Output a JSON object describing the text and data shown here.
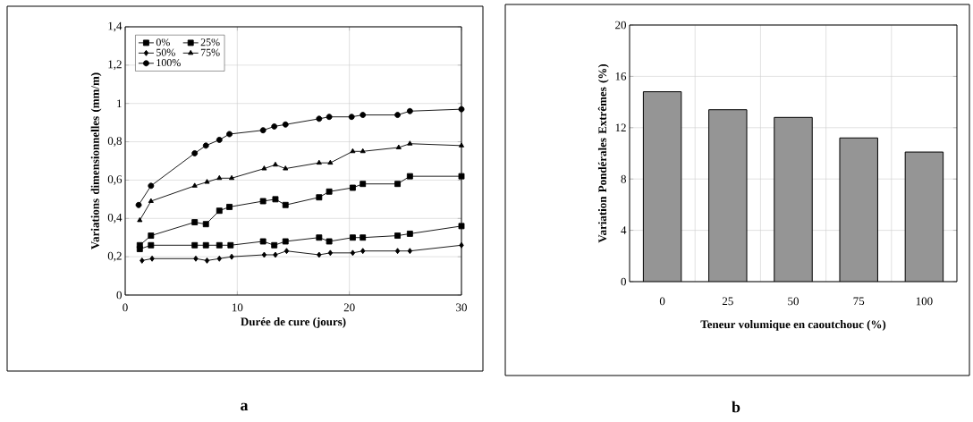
{
  "chart_data": [
    {
      "type": "line",
      "xlabel": "Durée de cure (jours)",
      "ylabel": "Variations dimensionnelles (mm/m)",
      "xlim": [
        0,
        30
      ],
      "ylim": [
        0,
        1.4
      ],
      "xticks": [
        0,
        10,
        20,
        30
      ],
      "yticks": [
        0,
        {
          "value": 0.2,
          "label": "0,2"
        },
        {
          "value": 0.4,
          "label": "0,4"
        },
        {
          "value": 0.6,
          "label": "0,6"
        },
        {
          "value": 0.8,
          "label": "0,8"
        },
        1,
        {
          "value": 1.2,
          "label": "1,2"
        },
        {
          "value": 1.4,
          "label": "1,4"
        }
      ],
      "grid": true,
      "legend": "top left",
      "annotations": [
        "a"
      ],
      "series": [
        {
          "name": "0%",
          "color": "#000000",
          "marker": "square",
          "x": [
            1.3,
            2.3,
            6.2,
            7.2,
            8.4,
            9.3,
            12.3,
            13.4,
            14.3,
            17.3,
            18.2,
            20.3,
            21.2,
            24.3,
            25.4,
            30
          ],
          "values": [
            0.26,
            0.31,
            0.38,
            0.37,
            0.44,
            0.46,
            0.49,
            0.5,
            0.47,
            0.51,
            0.54,
            0.56,
            0.58,
            0.58,
            0.62,
            0.62
          ]
        },
        {
          "name": "25%",
          "color": "#000000",
          "marker": "square",
          "x": [
            1.3,
            2.3,
            6.2,
            7.2,
            8.4,
            9.4,
            12.3,
            13.3,
            14.3,
            17.3,
            18.2,
            20.3,
            21.2,
            24.3,
            25.4,
            30
          ],
          "values": [
            0.24,
            0.26,
            0.26,
            0.26,
            0.26,
            0.26,
            0.28,
            0.26,
            0.28,
            0.3,
            0.28,
            0.3,
            0.3,
            0.31,
            0.32,
            0.36
          ]
        },
        {
          "name": "50%",
          "color": "#000000",
          "marker": "diamond",
          "x": [
            1.5,
            2.4,
            6.3,
            7.3,
            8.4,
            9.5,
            12.4,
            13.4,
            14.4,
            17.3,
            18.3,
            20.3,
            21.2,
            24.3,
            25.4,
            30
          ],
          "values": [
            0.18,
            0.19,
            0.19,
            0.18,
            0.19,
            0.2,
            0.21,
            0.21,
            0.23,
            0.21,
            0.22,
            0.22,
            0.23,
            0.23,
            0.23,
            0.26
          ]
        },
        {
          "name": "75%",
          "color": "#000000",
          "marker": "triangle",
          "x": [
            1.3,
            2.3,
            6.2,
            7.3,
            8.4,
            9.5,
            12.4,
            13.4,
            14.3,
            17.3,
            18.3,
            20.3,
            21.2,
            24.4,
            25.4,
            30
          ],
          "values": [
            0.39,
            0.49,
            0.57,
            0.59,
            0.61,
            0.61,
            0.66,
            0.68,
            0.66,
            0.69,
            0.69,
            0.75,
            0.75,
            0.77,
            0.79,
            0.78
          ]
        },
        {
          "name": "100%",
          "color": "#000000",
          "marker": "circle",
          "x": [
            1.2,
            2.3,
            6.2,
            7.2,
            8.4,
            9.3,
            12.3,
            13.3,
            14.3,
            17.3,
            18.2,
            20.2,
            21.2,
            24.3,
            25.4,
            30
          ],
          "values": [
            0.47,
            0.57,
            0.74,
            0.78,
            0.81,
            0.84,
            0.86,
            0.88,
            0.89,
            0.92,
            0.93,
            0.93,
            0.94,
            0.94,
            0.96,
            0.97
          ]
        }
      ]
    },
    {
      "type": "bar",
      "xlabel": "Teneur volumique en caoutchouc (%)",
      "ylabel": "Variation Pondérales Extrêmes (%)",
      "categories": [
        "0",
        "25",
        "50",
        "75",
        "100"
      ],
      "values": [
        14.8,
        13.4,
        12.8,
        11.2,
        10.1
      ],
      "color": "#959595",
      "ylim": [
        0,
        20
      ],
      "yticks": [
        0,
        4,
        8,
        12,
        16,
        20
      ],
      "grid": true,
      "annotations": [
        "b"
      ]
    }
  ]
}
